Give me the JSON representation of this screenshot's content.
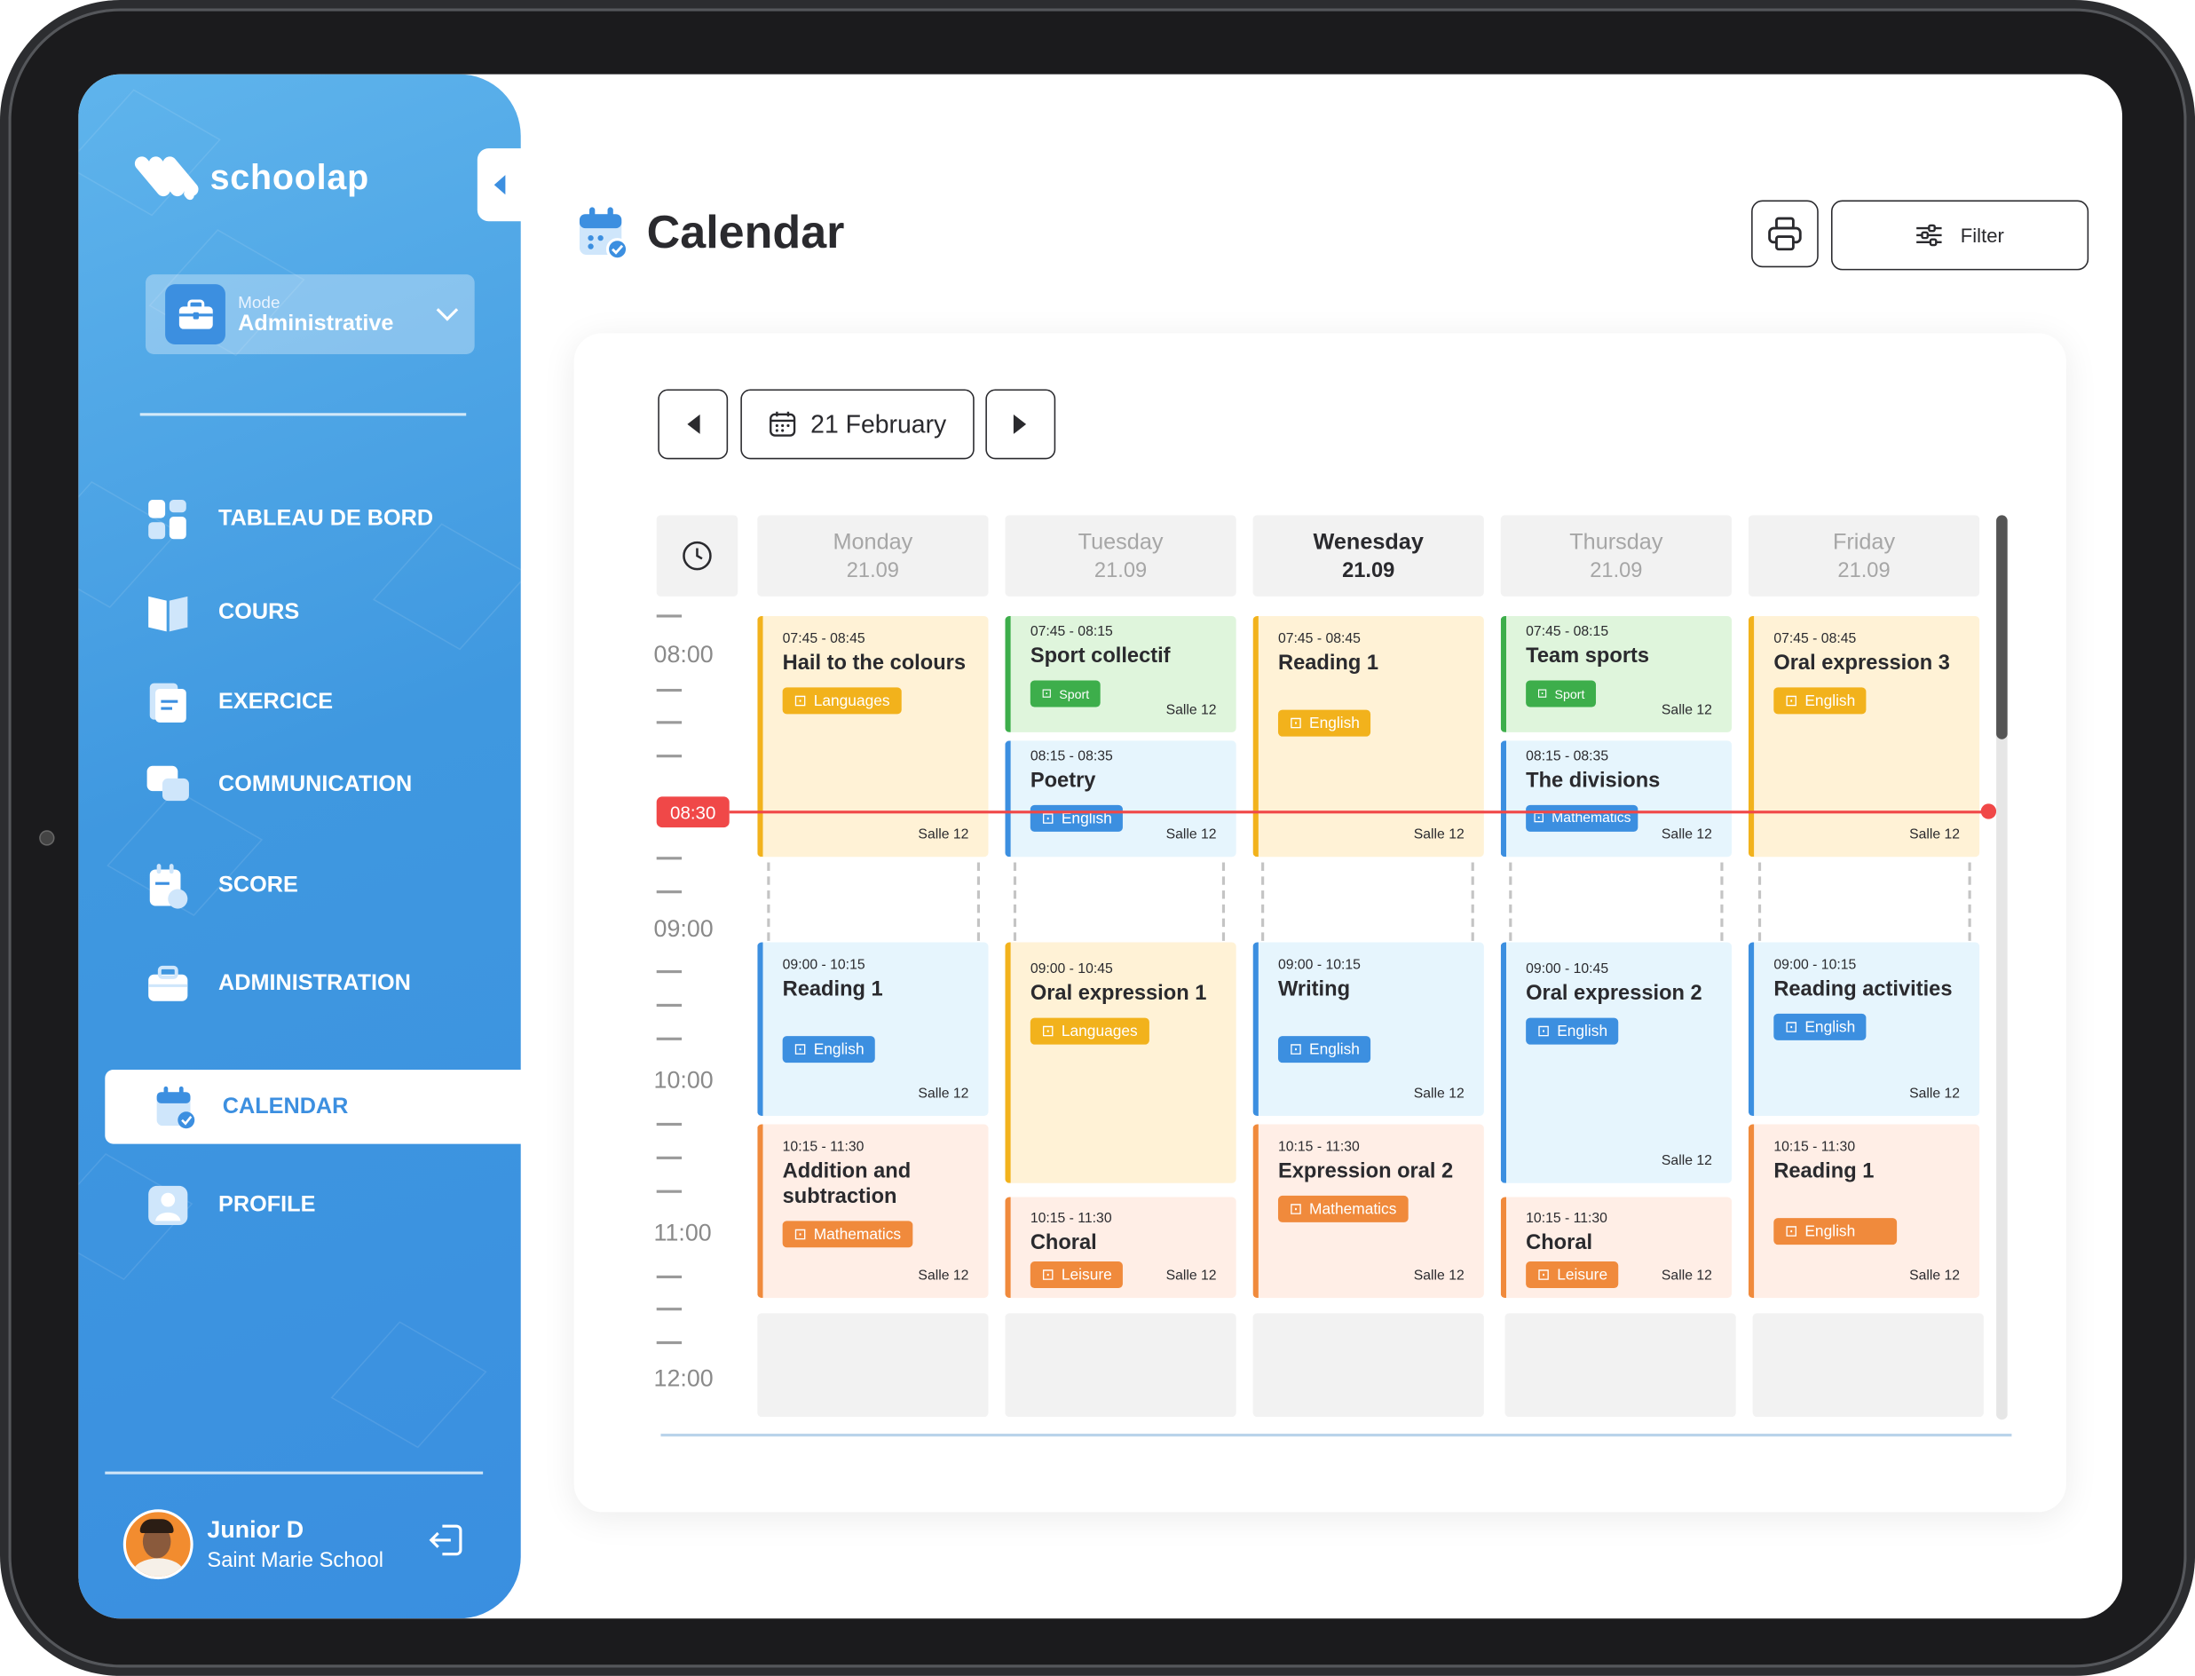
{
  "app": {
    "name": "schoolap"
  },
  "mode": {
    "label": "Mode",
    "value": "Administrative"
  },
  "nav": [
    {
      "label": "TABLEAU DE BORD",
      "icon": "dashboard-icon"
    },
    {
      "label": "COURS",
      "icon": "book-icon"
    },
    {
      "label": "EXERCICE",
      "icon": "exercise-icon"
    },
    {
      "label": "COMMUNICATION",
      "icon": "chat-icon"
    },
    {
      "label": "SCORE",
      "icon": "score-icon"
    },
    {
      "label": "ADMINISTRATION",
      "icon": "briefcase-icon"
    },
    {
      "label": "CALENDAR",
      "icon": "calendar-icon",
      "active": true
    },
    {
      "label": "PROFILE",
      "icon": "profile-icon"
    }
  ],
  "user": {
    "name": "Junior D",
    "school": "Saint Marie School"
  },
  "page": {
    "title": "Calendar"
  },
  "toolbar": {
    "filter_label": "Filter"
  },
  "calendar": {
    "date_label": "21 February",
    "current_time": "08:30",
    "hours": [
      "08:00",
      "09:00",
      "10:00",
      "11:00",
      "12:00"
    ],
    "days": [
      {
        "name": "Monday",
        "date": "21.09"
      },
      {
        "name": "Tuesday",
        "date": "21.09"
      },
      {
        "name": "Wenesday",
        "date": "21.09",
        "active": true
      },
      {
        "name": "Thursday",
        "date": "21.09"
      },
      {
        "name": "Friday",
        "date": "21.09"
      }
    ]
  },
  "events": {
    "mon1": {
      "time": "07:45 - 08:45",
      "title": "Hail to the colours",
      "tag": "Languages",
      "room": "Salle 12",
      "color": "#f2b21c"
    },
    "mon2": {
      "time": "09:00 - 10:15",
      "title": "Reading 1",
      "tag": "English",
      "room": "Salle 12",
      "color": "#3c8fe0"
    },
    "mon3": {
      "time": "10:15 - 11:30",
      "title": "Addition and subtraction",
      "tag": "Mathematics",
      "room": "Salle 12",
      "color": "#f08a3c"
    },
    "tue1": {
      "time": "07:45 - 08:15",
      "title": "Sport collectif",
      "tag": "Sport",
      "room": "Salle 12",
      "color": "#3dae4b"
    },
    "tue2": {
      "time": "08:15 - 08:35",
      "title": "Poetry",
      "tag": "English",
      "room": "Salle 12",
      "color": "#3c8fe0"
    },
    "tue3": {
      "time": "09:00 - 10:45",
      "title": "Oral expression 1",
      "tag": "Languages",
      "room": "",
      "color": "#f2b21c"
    },
    "tue4": {
      "time": "10:15 - 11:30",
      "title": "Choral",
      "tag": "Leisure",
      "room": "Salle 12",
      "color": "#f08a3c"
    },
    "wed1": {
      "time": "07:45 - 08:45",
      "title": "Reading 1",
      "tag": "English",
      "room": "Salle 12",
      "color": "#f2b21c"
    },
    "wed2": {
      "time": "09:00 - 10:15",
      "title": "Writing",
      "tag": "English",
      "room": "Salle 12",
      "color": "#3c8fe0"
    },
    "wed3": {
      "time": "10:15 - 11:30",
      "title": "Expression oral 2",
      "tag": "Mathematics",
      "room": "Salle 12",
      "color": "#f08a3c"
    },
    "thu1": {
      "time": "07:45 - 08:15",
      "title": "Team sports",
      "tag": "Sport",
      "room": "Salle 12",
      "color": "#3dae4b"
    },
    "thu2": {
      "time": "08:15 - 08:35",
      "title": "The divisions",
      "tag": "Mathematics",
      "room": "Salle 12",
      "color": "#3c8fe0"
    },
    "thu3": {
      "time": "09:00 - 10:45",
      "title": "Oral expression 2",
      "tag": "English",
      "room": "Salle 12",
      "color": "#3c8fe0"
    },
    "thu4": {
      "time": "10:15 - 11:30",
      "title": "Choral",
      "tag": "Leisure",
      "room": "Salle 12",
      "color": "#f08a3c"
    },
    "fri1": {
      "time": "07:45 - 08:45",
      "title": "Oral expression 3",
      "tag": "English",
      "room": "Salle 12",
      "color": "#f2b21c"
    },
    "fri2": {
      "time": "09:00 - 10:15",
      "title": "Reading activities",
      "tag": "English",
      "room": "Salle 12",
      "color": "#3c8fe0"
    },
    "fri3": {
      "time": "10:15 - 11:30",
      "title": "Reading 1",
      "tag": "English",
      "room": "Salle 12",
      "color": "#f08a3c"
    }
  }
}
